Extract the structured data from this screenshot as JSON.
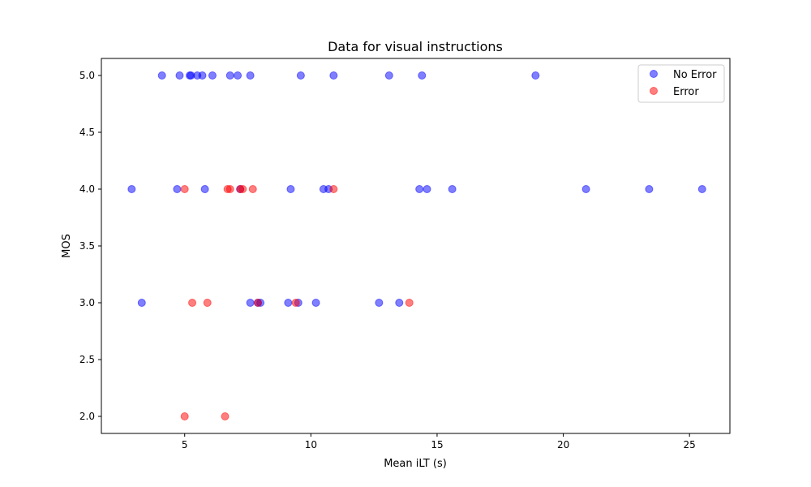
{
  "chart_data": {
    "type": "scatter",
    "title": "Data for visual instructions",
    "xlabel": "Mean iLT (s)",
    "ylabel": "MOS",
    "xlim": [
      1.7,
      26.6
    ],
    "ylim": [
      1.85,
      5.15
    ],
    "xticks": [
      5,
      10,
      15,
      20,
      25
    ],
    "xtick_labels": [
      "5",
      "10",
      "15",
      "20",
      "25"
    ],
    "yticks": [
      2.0,
      2.5,
      3.0,
      3.5,
      4.0,
      4.5,
      5.0
    ],
    "ytick_labels": [
      "2.0",
      "2.5",
      "3.0",
      "3.5",
      "4.0",
      "4.5",
      "5.0"
    ],
    "grid": false,
    "legend_position": "top-right",
    "series": [
      {
        "name": "No Error",
        "color": "#0000ff",
        "opacity": 0.5,
        "points": [
          {
            "x": 4.1,
            "y": 5.0
          },
          {
            "x": 4.8,
            "y": 5.0
          },
          {
            "x": 5.2,
            "y": 5.0
          },
          {
            "x": 5.25,
            "y": 5.0
          },
          {
            "x": 5.5,
            "y": 5.0
          },
          {
            "x": 5.7,
            "y": 5.0
          },
          {
            "x": 6.1,
            "y": 5.0
          },
          {
            "x": 6.8,
            "y": 5.0
          },
          {
            "x": 7.1,
            "y": 5.0
          },
          {
            "x": 7.6,
            "y": 5.0
          },
          {
            "x": 9.6,
            "y": 5.0
          },
          {
            "x": 10.9,
            "y": 5.0
          },
          {
            "x": 13.1,
            "y": 5.0
          },
          {
            "x": 14.4,
            "y": 5.0
          },
          {
            "x": 18.9,
            "y": 5.0
          },
          {
            "x": 2.9,
            "y": 4.0
          },
          {
            "x": 4.7,
            "y": 4.0
          },
          {
            "x": 5.8,
            "y": 4.0
          },
          {
            "x": 7.2,
            "y": 4.0
          },
          {
            "x": 9.2,
            "y": 4.0
          },
          {
            "x": 10.5,
            "y": 4.0
          },
          {
            "x": 10.7,
            "y": 4.0
          },
          {
            "x": 14.3,
            "y": 4.0
          },
          {
            "x": 14.6,
            "y": 4.0
          },
          {
            "x": 15.6,
            "y": 4.0
          },
          {
            "x": 20.9,
            "y": 4.0
          },
          {
            "x": 23.4,
            "y": 4.0
          },
          {
            "x": 25.5,
            "y": 4.0
          },
          {
            "x": 3.3,
            "y": 3.0
          },
          {
            "x": 7.6,
            "y": 3.0
          },
          {
            "x": 7.9,
            "y": 3.0
          },
          {
            "x": 8.0,
            "y": 3.0
          },
          {
            "x": 9.1,
            "y": 3.0
          },
          {
            "x": 9.5,
            "y": 3.0
          },
          {
            "x": 10.2,
            "y": 3.0
          },
          {
            "x": 12.7,
            "y": 3.0
          },
          {
            "x": 13.5,
            "y": 3.0
          }
        ]
      },
      {
        "name": "Error",
        "color": "#ff0000",
        "opacity": 0.5,
        "points": [
          {
            "x": 5.0,
            "y": 4.0
          },
          {
            "x": 6.7,
            "y": 4.0
          },
          {
            "x": 6.8,
            "y": 4.0
          },
          {
            "x": 7.2,
            "y": 4.0
          },
          {
            "x": 7.3,
            "y": 4.0
          },
          {
            "x": 7.7,
            "y": 4.0
          },
          {
            "x": 10.9,
            "y": 4.0
          },
          {
            "x": 5.3,
            "y": 3.0
          },
          {
            "x": 5.9,
            "y": 3.0
          },
          {
            "x": 7.9,
            "y": 3.0
          },
          {
            "x": 9.4,
            "y": 3.0
          },
          {
            "x": 13.9,
            "y": 3.0
          },
          {
            "x": 5.0,
            "y": 2.0
          },
          {
            "x": 6.6,
            "y": 2.0
          }
        ]
      }
    ]
  }
}
